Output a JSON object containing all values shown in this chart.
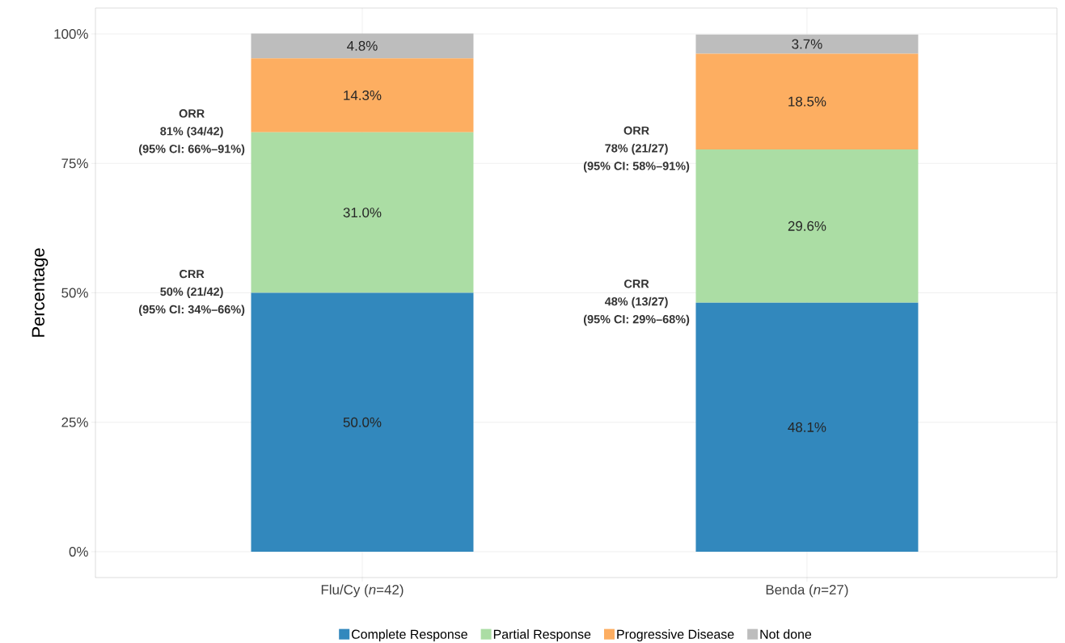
{
  "chart_data": {
    "type": "bar",
    "stacked": true,
    "ylabel": "Percentage",
    "categories": [
      "Flu/Cy (*n*=42)",
      "Benda (*n*=27)"
    ],
    "series": [
      {
        "name": "Complete Response",
        "color": "#3288bd",
        "values": [
          50.0,
          48.1
        ],
        "value_labels": [
          "50.0%",
          "48.1%"
        ]
      },
      {
        "name": "Partial Response",
        "color": "#abdda4",
        "values": [
          31.0,
          29.6
        ],
        "value_labels": [
          "31.0%",
          "29.6%"
        ]
      },
      {
        "name": "Progressive Disease",
        "color": "#fdae61",
        "values": [
          14.3,
          18.5
        ],
        "value_labels": [
          "14.3%",
          "18.5%"
        ]
      },
      {
        "name": "Not done",
        "color": "#bdbdbd",
        "values": [
          4.8,
          3.7
        ],
        "value_labels": [
          "4.8%",
          "3.7%"
        ]
      }
    ],
    "ylim": [
      -5,
      105
    ],
    "yticks": [
      {
        "value": 0,
        "label": "0%"
      },
      {
        "value": 25,
        "label": "25%"
      },
      {
        "value": 50,
        "label": "50%"
      },
      {
        "value": 75,
        "label": "75%"
      },
      {
        "value": 100,
        "label": "100%"
      }
    ],
    "annotations": [
      "ORR",
      "81% (34/42)",
      "(95% CI: 66%–91%)",
      "CRR",
      "50% (21/42)",
      "(95% CI: 34%–66%)",
      "ORR",
      "78% (21/27)",
      "(95% CI: 58%–91%)",
      "CRR",
      "48% (13/27)",
      "(95% CI: 29%–68%)"
    ],
    "grid": true,
    "legend": "bottom"
  }
}
